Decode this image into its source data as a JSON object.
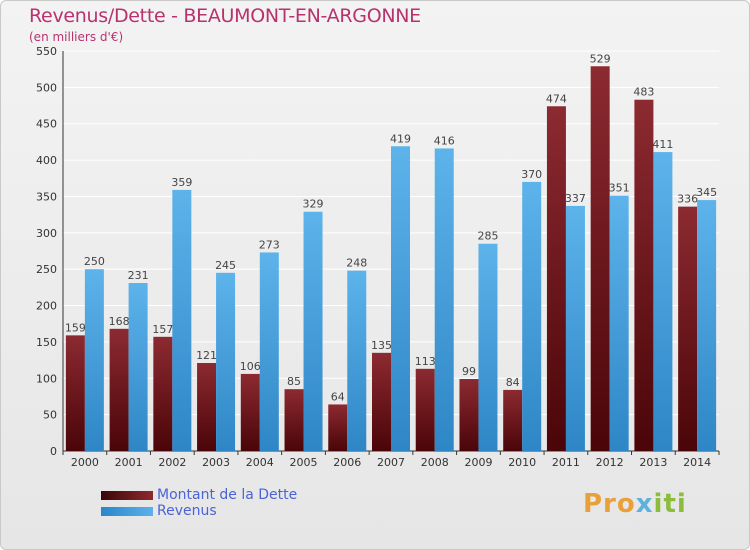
{
  "header": {
    "title": "Revenus/Dette - BEAUMONT-EN-ARGONNE",
    "subtitle": "(en milliers d'€)"
  },
  "logo": {
    "text_a": "Pro",
    "text_b": "x",
    "text_c": "iti"
  },
  "colors": {
    "dette": "#7a1a1f",
    "revenus": "#4aa3e0",
    "title": "#b8326e",
    "legend_text": "#4a63d6",
    "grid": "#ffffff"
  },
  "chart_data": {
    "type": "bar",
    "title": "Revenus/Dette - BEAUMONT-EN-ARGONNE",
    "subtitle": "(en milliers d'€)",
    "categories": [
      "2000",
      "2001",
      "2002",
      "2003",
      "2004",
      "2005",
      "2006",
      "2007",
      "2008",
      "2009",
      "2010",
      "2011",
      "2012",
      "2013",
      "2014"
    ],
    "series": [
      {
        "name": "Montant de la Dette",
        "color": "#7a1a1f",
        "values": [
          159,
          168,
          157,
          121,
          106,
          85,
          64,
          135,
          113,
          99,
          84,
          474,
          529,
          483,
          336
        ]
      },
      {
        "name": "Revenus",
        "color": "#4aa3e0",
        "values": [
          250,
          231,
          359,
          245,
          273,
          329,
          248,
          419,
          416,
          285,
          370,
          337,
          351,
          411,
          345
        ]
      }
    ],
    "ylim": [
      0,
      550
    ],
    "yticks": [
      0,
      50,
      100,
      150,
      200,
      250,
      300,
      350,
      400,
      450,
      500,
      550
    ],
    "grid": true,
    "legend": "bottom-left"
  }
}
